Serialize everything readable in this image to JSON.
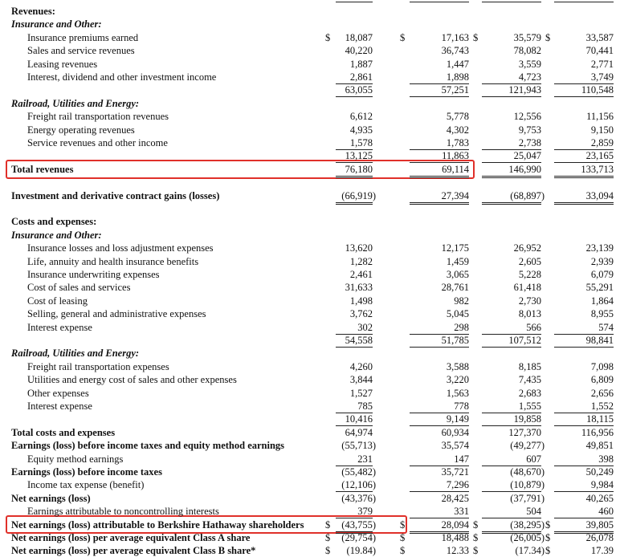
{
  "rows": [
    {
      "label": "Revenues:",
      "kind": "section"
    },
    {
      "label": "Insurance and Other:",
      "kind": "subsection"
    },
    {
      "label": "Insurance premiums earned",
      "kind": "item",
      "currency": "$",
      "values": [
        "18,087",
        "17,163",
        "35,579",
        "33,587"
      ]
    },
    {
      "label": "Sales and service revenues",
      "kind": "item",
      "values": [
        "40,220",
        "36,743",
        "78,082",
        "70,441"
      ]
    },
    {
      "label": "Leasing revenues",
      "kind": "item",
      "values": [
        "1,887",
        "1,447",
        "3,559",
        "2,771"
      ]
    },
    {
      "label": "Interest, dividend and other investment income",
      "kind": "item",
      "values": [
        "2,861",
        "1,898",
        "4,723",
        "3,749"
      ],
      "rule": "single"
    },
    {
      "kind": "subtotal",
      "values": [
        "63,055",
        "57,251",
        "121,943",
        "110,548"
      ],
      "rule": "single"
    },
    {
      "label": "Railroad, Utilities and Energy:",
      "kind": "subsection"
    },
    {
      "label": "Freight rail transportation revenues",
      "kind": "item",
      "values": [
        "6,612",
        "5,778",
        "12,556",
        "11,156"
      ]
    },
    {
      "label": "Energy operating revenues",
      "kind": "item",
      "values": [
        "4,935",
        "4,302",
        "9,753",
        "9,150"
      ]
    },
    {
      "label": "Service revenues and other income",
      "kind": "item",
      "values": [
        "1,578",
        "1,783",
        "2,738",
        "2,859"
      ],
      "rule": "single"
    },
    {
      "kind": "subtotal",
      "values": [
        "13,125",
        "11,863",
        "25,047",
        "23,165"
      ],
      "rule": "single"
    },
    {
      "label": "Total revenues",
      "kind": "total",
      "values": [
        "76,180",
        "69,114",
        "146,990",
        "133,713"
      ],
      "rule": "double"
    },
    {
      "label": "Investment and derivative contract gains (losses)",
      "kind": "separate",
      "values": [
        "(66,919)",
        "27,394",
        "(68,897)",
        "33,094"
      ],
      "rule": "double"
    },
    {
      "label": "Costs and expenses:",
      "kind": "section"
    },
    {
      "label": "Insurance and Other:",
      "kind": "subsection"
    },
    {
      "label": "Insurance losses and loss adjustment expenses",
      "kind": "item",
      "values": [
        "13,620",
        "12,175",
        "26,952",
        "23,139"
      ]
    },
    {
      "label": "Life, annuity and health insurance benefits",
      "kind": "item",
      "values": [
        "1,282",
        "1,459",
        "2,605",
        "2,939"
      ]
    },
    {
      "label": "Insurance underwriting expenses",
      "kind": "item",
      "values": [
        "2,461",
        "3,065",
        "5,228",
        "6,079"
      ]
    },
    {
      "label": "Cost of sales and services",
      "kind": "item",
      "values": [
        "31,633",
        "28,761",
        "61,418",
        "55,291"
      ]
    },
    {
      "label": "Cost of leasing",
      "kind": "item",
      "values": [
        "1,498",
        "982",
        "2,730",
        "1,864"
      ]
    },
    {
      "label": "Selling, general and administrative expenses",
      "kind": "item",
      "values": [
        "3,762",
        "5,045",
        "8,013",
        "8,955"
      ]
    },
    {
      "label": "Interest expense",
      "kind": "item",
      "values": [
        "302",
        "298",
        "566",
        "574"
      ],
      "rule": "single"
    },
    {
      "kind": "subtotal",
      "values": [
        "54,558",
        "51,785",
        "107,512",
        "98,841"
      ],
      "rule": "single"
    },
    {
      "label": "Railroad, Utilities and Energy:",
      "kind": "subsection"
    },
    {
      "label": "Freight rail transportation expenses",
      "kind": "item",
      "values": [
        "4,260",
        "3,588",
        "8,185",
        "7,098"
      ]
    },
    {
      "label": "Utilities and energy cost of sales and other expenses",
      "kind": "item",
      "values": [
        "3,844",
        "3,220",
        "7,435",
        "6,809"
      ]
    },
    {
      "label": "Other expenses",
      "kind": "item",
      "values": [
        "1,527",
        "1,563",
        "2,683",
        "2,656"
      ]
    },
    {
      "label": "Interest expense",
      "kind": "item",
      "values": [
        "785",
        "778",
        "1,555",
        "1,552"
      ],
      "rule": "single"
    },
    {
      "kind": "subtotal",
      "values": [
        "10,416",
        "9,149",
        "19,858",
        "18,115"
      ],
      "rule": "single"
    },
    {
      "label": "Total costs and expenses",
      "kind": "total",
      "values": [
        "64,974",
        "60,934",
        "127,370",
        "116,956"
      ]
    },
    {
      "label": "Earnings (loss) before income taxes and equity method earnings",
      "kind": "total",
      "values": [
        "(55,713)",
        "35,574",
        "(49,277)",
        "49,851"
      ]
    },
    {
      "label": "Equity method earnings",
      "kind": "item",
      "values": [
        "231",
        "147",
        "607",
        "398"
      ],
      "rule": "single"
    },
    {
      "label": "Earnings (loss) before income taxes",
      "kind": "total",
      "values": [
        "(55,482)",
        "35,721",
        "(48,670)",
        "50,249"
      ]
    },
    {
      "label": "Income tax expense (benefit)",
      "kind": "item",
      "values": [
        "(12,106)",
        "7,296",
        "(10,879)",
        "9,984"
      ],
      "rule": "single"
    },
    {
      "label": "Net earnings (loss)",
      "kind": "total",
      "values": [
        "(43,376)",
        "28,425",
        "(37,791)",
        "40,265"
      ]
    },
    {
      "label": "Earnings attributable to noncontrolling interests",
      "kind": "item",
      "values": [
        "379",
        "331",
        "504",
        "460"
      ],
      "rule": "single"
    },
    {
      "label": "Net earnings (loss) attributable to Berkshire Hathaway shareholders",
      "kind": "total",
      "currency": "$",
      "values": [
        "(43,755)",
        "28,094",
        "(38,295)",
        "39,805"
      ],
      "rule": "double"
    },
    {
      "label": "Net earnings (loss) per average equivalent Class A share",
      "kind": "total",
      "currency": "$",
      "values": [
        "(29,754)",
        "18,488",
        "(26,005)",
        "26,078"
      ]
    },
    {
      "label": "Net earnings (loss) per average equivalent Class B share*",
      "kind": "total",
      "currency": "$",
      "values": [
        "(19.84)",
        "12.33",
        "(17.34)",
        "17.39"
      ]
    }
  ]
}
